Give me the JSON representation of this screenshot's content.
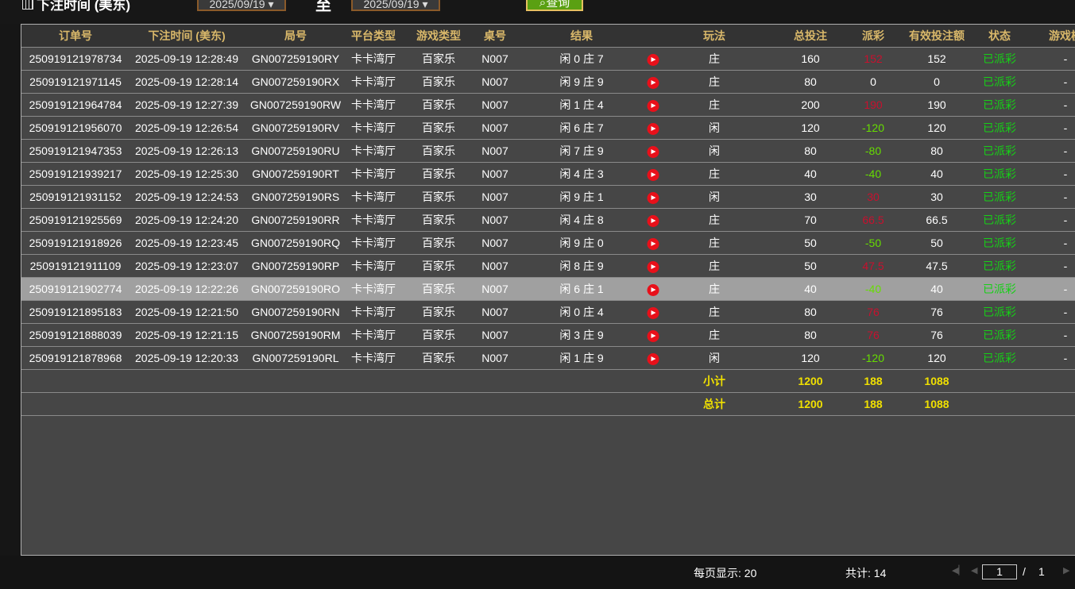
{
  "filter": {
    "label": "下注时间 (美东)",
    "date_from": "2025/09/19",
    "separator": "至",
    "date_to": "2025/09/19",
    "query_label": "查询"
  },
  "columns": [
    "订单号",
    "下注时间 (美东)",
    "局号",
    "平台类型",
    "游戏类型",
    "桌号",
    "结果",
    "",
    "玩法",
    "总投注",
    "派彩",
    "有效投注额",
    "状态",
    "游戏模"
  ],
  "rows": [
    [
      "250919121978734",
      "2025-09-19 12:28:49",
      "GN007259190RY",
      "卡卡湾厅",
      "百家乐",
      "N007",
      "闲 0 庄 7",
      "庄",
      "160",
      "152",
      "152",
      "已派彩",
      "-"
    ],
    [
      "250919121971145",
      "2025-09-19 12:28:14",
      "GN007259190RX",
      "卡卡湾厅",
      "百家乐",
      "N007",
      "闲 9 庄 9",
      "庄",
      "80",
      "0",
      "0",
      "已派彩",
      "-"
    ],
    [
      "250919121964784",
      "2025-09-19 12:27:39",
      "GN007259190RW",
      "卡卡湾厅",
      "百家乐",
      "N007",
      "闲 1 庄 4",
      "庄",
      "200",
      "190",
      "190",
      "已派彩",
      "-"
    ],
    [
      "250919121956070",
      "2025-09-19 12:26:54",
      "GN007259190RV",
      "卡卡湾厅",
      "百家乐",
      "N007",
      "闲 6 庄 7",
      "闲",
      "120",
      "-120",
      "120",
      "已派彩",
      "-"
    ],
    [
      "250919121947353",
      "2025-09-19 12:26:13",
      "GN007259190RU",
      "卡卡湾厅",
      "百家乐",
      "N007",
      "闲 7 庄 9",
      "闲",
      "80",
      "-80",
      "80",
      "已派彩",
      "-"
    ],
    [
      "250919121939217",
      "2025-09-19 12:25:30",
      "GN007259190RT",
      "卡卡湾厅",
      "百家乐",
      "N007",
      "闲 4 庄 3",
      "庄",
      "40",
      "-40",
      "40",
      "已派彩",
      "-"
    ],
    [
      "250919121931152",
      "2025-09-19 12:24:53",
      "GN007259190RS",
      "卡卡湾厅",
      "百家乐",
      "N007",
      "闲 9 庄 1",
      "闲",
      "30",
      "30",
      "30",
      "已派彩",
      "-"
    ],
    [
      "250919121925569",
      "2025-09-19 12:24:20",
      "GN007259190RR",
      "卡卡湾厅",
      "百家乐",
      "N007",
      "闲 4 庄 8",
      "庄",
      "70",
      "66.5",
      "66.5",
      "已派彩",
      "-"
    ],
    [
      "250919121918926",
      "2025-09-19 12:23:45",
      "GN007259190RQ",
      "卡卡湾厅",
      "百家乐",
      "N007",
      "闲 9 庄 0",
      "庄",
      "50",
      "-50",
      "50",
      "已派彩",
      "-"
    ],
    [
      "250919121911109",
      "2025-09-19 12:23:07",
      "GN007259190RP",
      "卡卡湾厅",
      "百家乐",
      "N007",
      "闲 8 庄 9",
      "庄",
      "50",
      "47.5",
      "47.5",
      "已派彩",
      "-"
    ],
    [
      "250919121902774",
      "2025-09-19 12:22:26",
      "GN007259190RO",
      "卡卡湾厅",
      "百家乐",
      "N007",
      "闲 6 庄 1",
      "庄",
      "40",
      "-40",
      "40",
      "已派彩",
      "-"
    ],
    [
      "250919121895183",
      "2025-09-19 12:21:50",
      "GN007259190RN",
      "卡卡湾厅",
      "百家乐",
      "N007",
      "闲 0 庄 4",
      "庄",
      "80",
      "76",
      "76",
      "已派彩",
      "-"
    ],
    [
      "250919121888039",
      "2025-09-19 12:21:15",
      "GN007259190RM",
      "卡卡湾厅",
      "百家乐",
      "N007",
      "闲 3 庄 9",
      "庄",
      "80",
      "76",
      "76",
      "已派彩",
      "-"
    ],
    [
      "250919121878968",
      "2025-09-19 12:20:33",
      "GN007259190RL",
      "卡卡湾厅",
      "百家乐",
      "N007",
      "闲 1 庄 9",
      "闲",
      "120",
      "-120",
      "120",
      "已派彩",
      "-"
    ]
  ],
  "selected_row": 10,
  "subtotal": {
    "label": "小计",
    "total_bet": "1200",
    "payout": "188",
    "valid_bet": "1088"
  },
  "grand_total": {
    "label": "总计",
    "total_bet": "1200",
    "payout": "188",
    "valid_bet": "1088"
  },
  "footer": {
    "page_size": "每页显示: 20",
    "total": "共计: 14",
    "current_page": "1",
    "page_sep": "/",
    "total_pages": "1"
  },
  "colors": {
    "header_text": "#d9b86a",
    "payout_positive": "#c8102e",
    "payout_negative": "#66dd00",
    "status": "#16d016",
    "sum_text": "#f0e000",
    "query_button": "#5aa012"
  },
  "icons": {
    "calendar": "calendar-icon",
    "search": "search-icon",
    "replay": "play-video-icon"
  }
}
